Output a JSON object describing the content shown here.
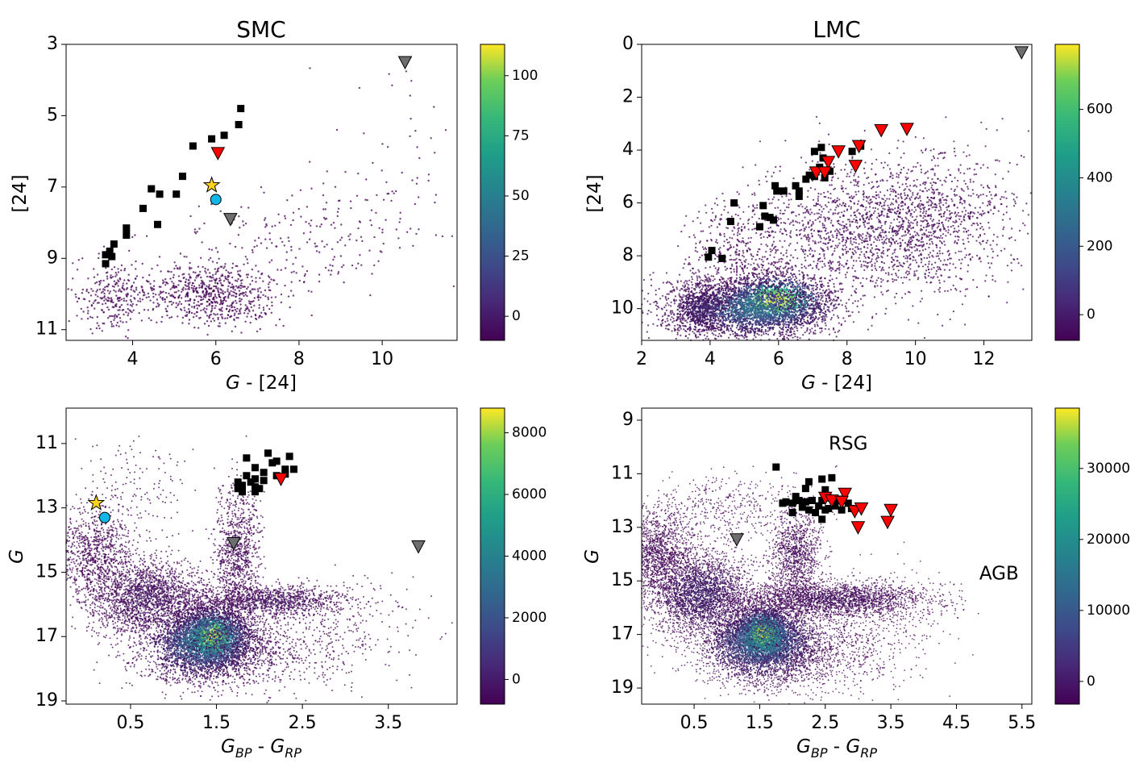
{
  "chart_data": [
    {
      "id": "smc-24",
      "type": "scatter",
      "title": "SMC",
      "xlabel": "G - [24]",
      "ylabel": "[24]",
      "xlim": [
        2.4,
        11.8
      ],
      "ylim": [
        11.3,
        3.0
      ],
      "y_inverted": true,
      "xticks": [
        4,
        6,
        8,
        10
      ],
      "yticks": [
        3,
        5,
        7,
        9,
        11
      ],
      "colorbar": {
        "min": -10,
        "max": 113,
        "ticks": [
          0,
          25,
          50,
          75,
          100
        ]
      },
      "density_cloud": [
        {
          "x": 5.9,
          "y": 10.0,
          "n": 700,
          "sx": 0.8,
          "sy": 0.45,
          "level": 0.0
        },
        {
          "x": 3.5,
          "y": 10.1,
          "n": 260,
          "sx": 0.45,
          "sy": 0.5,
          "level": 0.0
        },
        {
          "x": 8.0,
          "y": 8.5,
          "n": 200,
          "sx": 1.5,
          "sy": 0.7,
          "level": 0.0
        },
        {
          "x": 10.3,
          "y": 7.0,
          "n": 70,
          "sx": 1.0,
          "sy": 1.4,
          "level": 0.0
        }
      ],
      "point_size": 1.2,
      "markers": {
        "squares": [
          [
            6.6,
            4.8
          ],
          [
            6.55,
            5.25
          ],
          [
            6.2,
            5.55
          ],
          [
            5.9,
            5.65
          ],
          [
            5.45,
            5.85
          ],
          [
            5.2,
            6.7
          ],
          [
            5.05,
            7.2
          ],
          [
            4.45,
            7.05
          ],
          [
            4.65,
            7.2
          ],
          [
            4.25,
            7.6
          ],
          [
            4.6,
            8.05
          ],
          [
            3.85,
            8.15
          ],
          [
            3.85,
            8.35
          ],
          [
            3.55,
            8.6
          ],
          [
            3.45,
            8.8
          ],
          [
            3.35,
            8.9
          ],
          [
            3.5,
            8.95
          ],
          [
            3.35,
            9.15
          ]
        ],
        "red_triangles": [
          [
            6.05,
            6.05
          ]
        ],
        "gray_triangles": [
          [
            10.55,
            3.5
          ],
          [
            6.35,
            7.9
          ]
        ],
        "stars": [
          [
            5.9,
            6.95
          ]
        ],
        "circles": [
          [
            6.0,
            7.35
          ]
        ]
      }
    },
    {
      "id": "lmc-24",
      "type": "scatter",
      "title": "LMC",
      "xlabel": "G - [24]",
      "ylabel": "[24]",
      "xlim": [
        2.0,
        13.4
      ],
      "ylim": [
        11.2,
        0.0
      ],
      "y_inverted": true,
      "xticks": [
        2,
        4,
        6,
        8,
        10,
        12
      ],
      "yticks": [
        0,
        2,
        4,
        6,
        8,
        10
      ],
      "colorbar": {
        "min": -75,
        "max": 790,
        "ticks": [
          0,
          200,
          400,
          600
        ]
      },
      "density_cloud": [
        {
          "x": 5.9,
          "y": 9.7,
          "n": 1500,
          "sx": 0.75,
          "sy": 0.5,
          "level": 0.95
        },
        {
          "x": 5.2,
          "y": 10.0,
          "n": 2200,
          "sx": 1.2,
          "sy": 0.55,
          "level": 0.35
        },
        {
          "x": 3.7,
          "y": 10.0,
          "n": 700,
          "sx": 0.45,
          "sy": 0.55,
          "level": 0.1
        },
        {
          "x": 8.7,
          "y": 7.0,
          "n": 1700,
          "sx": 1.7,
          "sy": 1.3,
          "level": 0.02
        },
        {
          "x": 11.0,
          "y": 6.5,
          "n": 500,
          "sx": 1.3,
          "sy": 1.3,
          "level": 0.0
        },
        {
          "x": 4.8,
          "y": 7.8,
          "n": 350,
          "sx": 0.8,
          "sy": 0.9,
          "level": 0.0
        }
      ],
      "point_size": 1.1,
      "markers": {
        "squares": [
          [
            7.25,
            3.9
          ],
          [
            7.05,
            4.05
          ],
          [
            7.3,
            4.3
          ],
          [
            7.2,
            4.65
          ],
          [
            7.5,
            4.8
          ],
          [
            7.35,
            5.05
          ],
          [
            7.05,
            5.0
          ],
          [
            6.8,
            5.1
          ],
          [
            6.9,
            4.95
          ],
          [
            6.5,
            5.35
          ],
          [
            6.6,
            5.55
          ],
          [
            6.6,
            5.75
          ],
          [
            6.15,
            5.55
          ],
          [
            5.9,
            5.35
          ],
          [
            5.95,
            5.55
          ],
          [
            5.55,
            6.1
          ],
          [
            5.6,
            6.5
          ],
          [
            5.75,
            6.55
          ],
          [
            5.85,
            6.65
          ],
          [
            5.45,
            6.9
          ],
          [
            4.7,
            6.0
          ],
          [
            4.6,
            6.7
          ],
          [
            4.05,
            7.8
          ],
          [
            3.95,
            8.05
          ],
          [
            4.35,
            8.1
          ],
          [
            8.15,
            4.05
          ],
          [
            8.4,
            3.85
          ]
        ],
        "red_triangles": [
          [
            9.0,
            3.25
          ],
          [
            9.75,
            3.2
          ],
          [
            8.35,
            3.85
          ],
          [
            7.75,
            4.05
          ],
          [
            7.45,
            4.45
          ],
          [
            8.25,
            4.6
          ],
          [
            7.1,
            4.85
          ],
          [
            7.35,
            4.85
          ]
        ],
        "gray_triangles": [
          [
            13.1,
            0.3
          ]
        ],
        "stars": [],
        "circles": []
      }
    },
    {
      "id": "smc-gaia",
      "type": "scatter",
      "title": "",
      "xlabel_parts": [
        "G",
        "BP",
        " - ",
        "G",
        "RP"
      ],
      "ylabel": "G",
      "xlim": [
        -0.25,
        4.3
      ],
      "ylim": [
        19.1,
        9.9
      ],
      "y_inverted": true,
      "xticks": [
        0.5,
        1.5,
        2.5,
        3.5
      ],
      "yticks": [
        11,
        13,
        15,
        17,
        19
      ],
      "colorbar": {
        "min": -800,
        "max": 8800,
        "ticks": [
          0,
          2000,
          4000,
          6000,
          8000
        ]
      },
      "density_cloud": [
        {
          "x": 1.45,
          "y": 17.0,
          "n": 2500,
          "sx": 0.2,
          "sy": 0.45,
          "level": 0.95
        },
        {
          "x": 1.35,
          "y": 17.2,
          "n": 2600,
          "sx": 0.35,
          "sy": 0.6,
          "level": 0.4
        },
        {
          "x": 0.7,
          "y": 15.8,
          "n": 2000,
          "sx": 0.35,
          "sy": 0.55,
          "level": 0.05
        },
        {
          "x": 0.1,
          "y": 14.4,
          "n": 900,
          "sx": 0.25,
          "sy": 0.7,
          "level": 0.0
        },
        {
          "x": 2.1,
          "y": 15.9,
          "n": 1100,
          "sx": 0.45,
          "sy": 0.25,
          "level": 0.05
        },
        {
          "x": 1.75,
          "y": 14.3,
          "n": 900,
          "sx": 0.13,
          "sy": 1.0,
          "level": 0.02
        },
        {
          "x": 1.8,
          "y": 17.5,
          "n": 700,
          "sx": 0.6,
          "sy": 0.6,
          "level": 0.0
        },
        {
          "x": 2.9,
          "y": 16.6,
          "n": 250,
          "sx": 0.55,
          "sy": 0.7,
          "level": 0.0
        },
        {
          "x": 0.5,
          "y": 12.4,
          "n": 150,
          "sx": 0.35,
          "sy": 0.8,
          "level": 0.0
        }
      ],
      "point_size": 1.0,
      "markers": {
        "squares": [
          [
            1.85,
            11.45
          ],
          [
            2.1,
            11.3
          ],
          [
            2.35,
            11.4
          ],
          [
            2.2,
            11.55
          ],
          [
            1.95,
            11.75
          ],
          [
            2.05,
            11.9
          ],
          [
            2.3,
            11.8
          ],
          [
            2.4,
            11.8
          ],
          [
            1.85,
            12.0
          ],
          [
            1.95,
            12.1
          ],
          [
            2.05,
            12.15
          ],
          [
            1.9,
            12.2
          ],
          [
            1.75,
            12.2
          ],
          [
            1.8,
            12.3
          ],
          [
            1.95,
            12.35
          ],
          [
            2.0,
            12.4
          ],
          [
            1.75,
            12.4
          ],
          [
            1.8,
            12.5
          ],
          [
            1.95,
            12.5
          ],
          [
            2.15,
            11.6
          ],
          [
            2.2,
            12.0
          ],
          [
            2.3,
            11.95
          ]
        ],
        "red_triangles": [
          [
            2.25,
            12.1
          ]
        ],
        "gray_triangles": [
          [
            1.7,
            14.1
          ],
          [
            3.85,
            14.2
          ]
        ],
        "stars": [
          [
            0.1,
            12.85
          ]
        ],
        "circles": [
          [
            0.2,
            13.3
          ]
        ]
      }
    },
    {
      "id": "lmc-gaia",
      "type": "scatter",
      "title": "",
      "xlabel_parts": [
        "G",
        "BP",
        " - ",
        "G",
        "RP"
      ],
      "ylabel": "G",
      "xlim": [
        -0.3,
        5.65
      ],
      "ylim": [
        19.6,
        8.55
      ],
      "y_inverted": true,
      "xticks": [
        0.5,
        1.5,
        2.5,
        3.5,
        4.5,
        5.5
      ],
      "yticks": [
        9,
        11,
        13,
        15,
        17,
        19
      ],
      "colorbar": {
        "min": -3200,
        "max": 38500,
        "ticks": [
          0,
          10000,
          20000,
          30000
        ]
      },
      "annotations": [
        {
          "text": "RSG",
          "x": 2.85,
          "y": 9.9
        },
        {
          "text": "AGB",
          "x": 5.15,
          "y": 14.75
        }
      ],
      "density_cloud": [
        {
          "x": 1.55,
          "y": 17.0,
          "n": 3000,
          "sx": 0.22,
          "sy": 0.5,
          "level": 0.95
        },
        {
          "x": 1.55,
          "y": 17.3,
          "n": 3500,
          "sx": 0.45,
          "sy": 0.7,
          "level": 0.4
        },
        {
          "x": 0.6,
          "y": 15.5,
          "n": 2800,
          "sx": 0.4,
          "sy": 0.8,
          "level": 0.1
        },
        {
          "x": -0.1,
          "y": 14.0,
          "n": 1500,
          "sx": 0.3,
          "sy": 0.8,
          "level": 0.02
        },
        {
          "x": 2.6,
          "y": 15.7,
          "n": 2200,
          "sx": 0.7,
          "sy": 0.3,
          "level": 0.05
        },
        {
          "x": 2.05,
          "y": 14.0,
          "n": 1200,
          "sx": 0.2,
          "sy": 0.9,
          "level": 0.02
        },
        {
          "x": 2.2,
          "y": 17.8,
          "n": 900,
          "sx": 0.7,
          "sy": 0.7,
          "level": 0.0
        },
        {
          "x": 3.3,
          "y": 16.2,
          "n": 400,
          "sx": 0.6,
          "sy": 0.8,
          "level": 0.0
        },
        {
          "x": 0.9,
          "y": 12.3,
          "n": 400,
          "sx": 0.5,
          "sy": 0.7,
          "level": 0.0
        }
      ],
      "point_size": 0.9,
      "markers": {
        "squares": [
          [
            1.75,
            10.75
          ],
          [
            2.45,
            11.2
          ],
          [
            2.6,
            11.15
          ],
          [
            2.25,
            11.3
          ],
          [
            2.5,
            11.6
          ],
          [
            2.05,
            11.85
          ],
          [
            2.1,
            12.0
          ],
          [
            1.9,
            12.05
          ],
          [
            2.0,
            12.1
          ],
          [
            2.2,
            12.05
          ],
          [
            2.3,
            12.0
          ],
          [
            2.45,
            12.0
          ],
          [
            2.55,
            11.9
          ],
          [
            2.7,
            11.95
          ],
          [
            2.4,
            12.2
          ],
          [
            2.15,
            12.25
          ],
          [
            2.25,
            12.35
          ],
          [
            2.0,
            12.45
          ],
          [
            2.35,
            12.45
          ],
          [
            2.5,
            12.35
          ],
          [
            2.65,
            12.2
          ],
          [
            2.85,
            12.1
          ],
          [
            2.9,
            12.3
          ],
          [
            2.55,
            12.3
          ],
          [
            2.45,
            12.7
          ],
          [
            1.85,
            12.1
          ],
          [
            2.75,
            12.35
          ],
          [
            2.2,
            11.55
          ]
        ],
        "red_triangles": [
          [
            2.5,
            11.9
          ],
          [
            2.6,
            12.0
          ],
          [
            2.8,
            11.75
          ],
          [
            2.75,
            12.05
          ],
          [
            2.95,
            12.4
          ],
          [
            3.05,
            12.3
          ],
          [
            3.5,
            12.35
          ],
          [
            3.0,
            13.0
          ],
          [
            3.45,
            12.8
          ]
        ],
        "gray_triangles": [
          [
            1.15,
            13.45
          ]
        ],
        "stars": [],
        "circles": []
      }
    }
  ]
}
